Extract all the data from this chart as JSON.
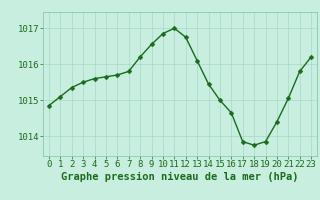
{
  "x": [
    0,
    1,
    2,
    3,
    4,
    5,
    6,
    7,
    8,
    9,
    10,
    11,
    12,
    13,
    14,
    15,
    16,
    17,
    18,
    19,
    20,
    21,
    22,
    23
  ],
  "y": [
    1014.85,
    1015.1,
    1015.35,
    1015.5,
    1015.6,
    1015.65,
    1015.7,
    1015.8,
    1016.2,
    1016.55,
    1016.85,
    1017.0,
    1016.75,
    1016.1,
    1015.45,
    1015.0,
    1014.65,
    1013.85,
    1013.75,
    1013.85,
    1014.4,
    1015.05,
    1015.8,
    1016.2
  ],
  "line_color": "#1a6b1a",
  "marker": "D",
  "marker_size": 2.5,
  "line_width": 1.0,
  "bg_color": "#c8eee0",
  "grid_color": "#a8d8c8",
  "xlabel": "Graphe pression niveau de la mer (hPa)",
  "xlabel_color": "#1a6b1a",
  "xlabel_fontsize": 7.5,
  "tick_color": "#1a6b1a",
  "tick_fontsize": 6.5,
  "ytick_labels": [
    "1014",
    "1015",
    "1016",
    "1017"
  ],
  "ytick_values": [
    1014,
    1015,
    1016,
    1017
  ],
  "ylim": [
    1013.45,
    1017.45
  ],
  "xlim": [
    -0.5,
    23.5
  ],
  "xtick_values": [
    0,
    1,
    2,
    3,
    4,
    5,
    6,
    7,
    8,
    9,
    10,
    11,
    12,
    13,
    14,
    15,
    16,
    17,
    18,
    19,
    20,
    21,
    22,
    23
  ],
  "spine_color": "#88c8a8",
  "bottom_bar_color": "#88c8a8"
}
